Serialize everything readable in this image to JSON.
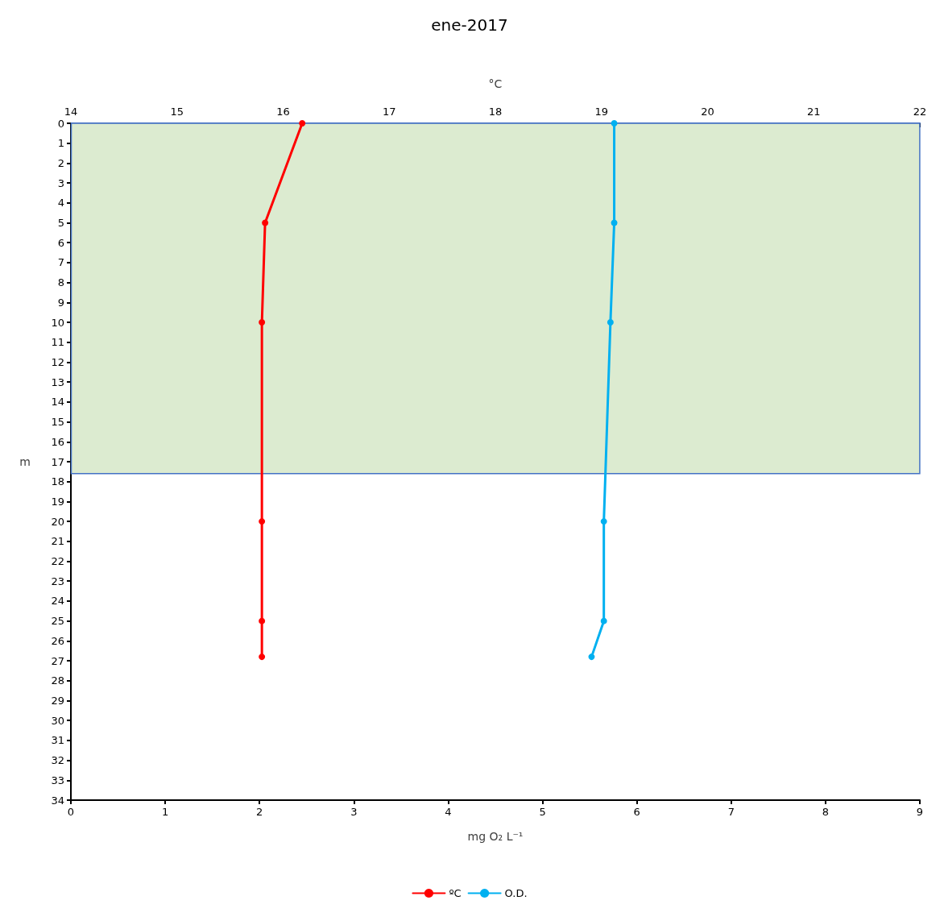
{
  "chart_data": {
    "type": "line",
    "title": "ene-2017",
    "ylabel": "m",
    "xlabel": "mg O₂ L⁻¹",
    "x2label": "°C",
    "ylim": [
      34,
      0
    ],
    "yticks": [
      0,
      1,
      2,
      3,
      4,
      5,
      6,
      7,
      8,
      9,
      10,
      11,
      12,
      13,
      14,
      15,
      16,
      17,
      18,
      19,
      20,
      21,
      22,
      23,
      24,
      25,
      26,
      27,
      28,
      29,
      30,
      31,
      32,
      33,
      34
    ],
    "xlim": [
      0,
      9
    ],
    "xticks": [
      0,
      1,
      2,
      3,
      4,
      5,
      6,
      7,
      8,
      9
    ],
    "x2lim": [
      14,
      22
    ],
    "x2ticks": [
      14,
      15,
      16,
      17,
      18,
      19,
      20,
      21,
      22
    ],
    "series": [
      {
        "name": "ºC",
        "color": "#ff0000",
        "axis": "x2",
        "x": [
          16.18,
          15.83,
          15.8,
          15.8,
          15.8,
          15.8
        ],
        "values": [
          0,
          5,
          10,
          20,
          25,
          26.8
        ]
      },
      {
        "name": "O.D.",
        "color": "#00b0f0",
        "x": [
          5.76,
          5.76,
          5.72,
          5.65,
          5.65,
          5.52
        ],
        "values": [
          0,
          5,
          10,
          20,
          25,
          26.8
        ]
      }
    ],
    "bands": [
      {
        "axis": "y",
        "from": 0,
        "to": 17.6,
        "color": "#dcebd0"
      }
    ],
    "marker": "circle",
    "line_style": "solid",
    "legend": "bottom",
    "grid": false
  }
}
